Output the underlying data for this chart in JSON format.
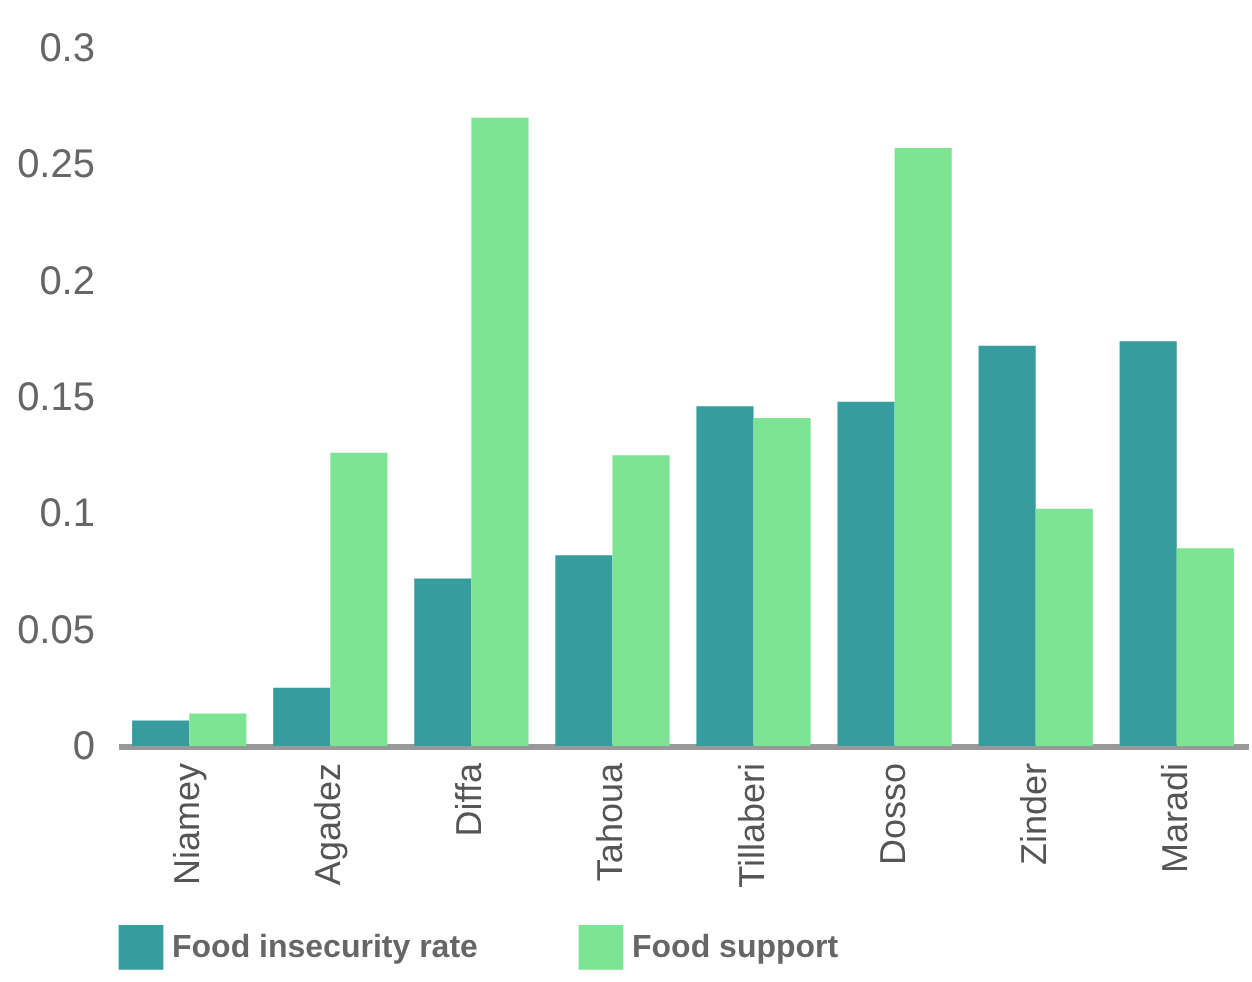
{
  "chart_data": {
    "type": "bar",
    "categories": [
      "Niamey",
      "Agadez",
      "Diffa",
      "Tahoua",
      "Tillaberi",
      "Dosso",
      "Zinder",
      "Maradi"
    ],
    "series": [
      {
        "name": "Food insecurity rate",
        "color": "#369c9e",
        "values": [
          0.011,
          0.025,
          0.072,
          0.082,
          0.146,
          0.148,
          0.172,
          0.174
        ]
      },
      {
        "name": "Food support",
        "color": "#7de494",
        "values": [
          0.014,
          0.126,
          0.27,
          0.125,
          0.141,
          0.257,
          0.102,
          0.085
        ]
      }
    ],
    "ylim": [
      0,
      0.3
    ],
    "yticks": [
      0,
      0.05,
      0.1,
      0.15,
      0.2,
      0.25,
      0.3
    ],
    "grid": false,
    "legend": "bottom"
  }
}
